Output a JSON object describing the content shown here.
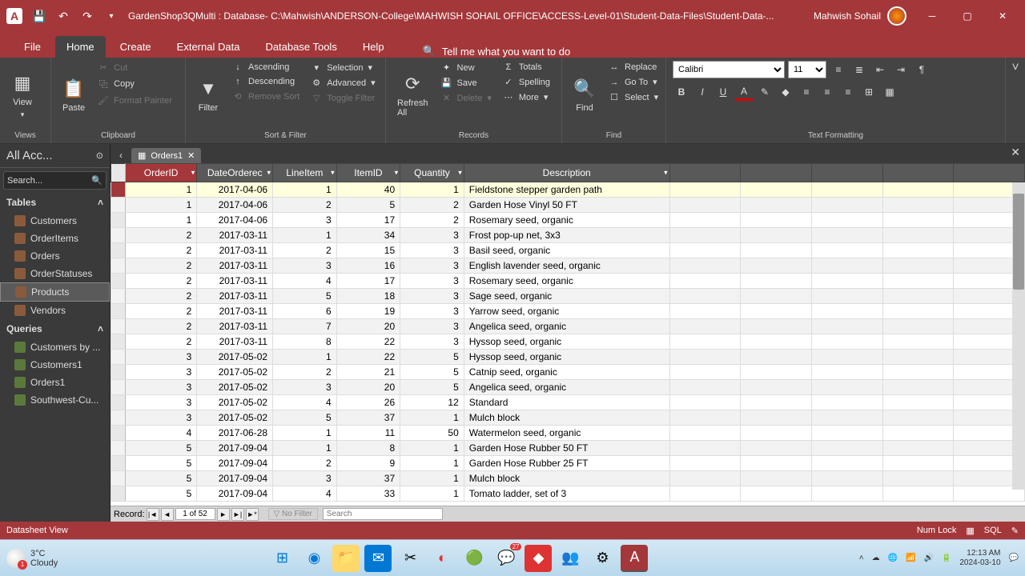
{
  "titlebar": {
    "app_letter": "A",
    "title": "GardenShop3QMulti : Database- C:\\Mahwish\\ANDERSON-College\\MAHWISH SOHAIL OFFICE\\ACCESS-Level-01\\Student-Data-Files\\Student-Data-...",
    "user": "Mahwish Sohail"
  },
  "tabs": {
    "file": "File",
    "home": "Home",
    "create": "Create",
    "external": "External Data",
    "dbtools": "Database Tools",
    "help": "Help",
    "tellme": "Tell me what you want to do"
  },
  "ribbon": {
    "views": {
      "label": "Views",
      "view": "View"
    },
    "clipboard": {
      "label": "Clipboard",
      "paste": "Paste",
      "cut": "Cut",
      "copy": "Copy",
      "format_painter": "Format Painter"
    },
    "sort": {
      "label": "Sort & Filter",
      "filter": "Filter",
      "asc": "Ascending",
      "desc": "Descending",
      "remove": "Remove Sort",
      "selection": "Selection",
      "advanced": "Advanced",
      "toggle": "Toggle Filter"
    },
    "records": {
      "label": "Records",
      "refresh": "Refresh\nAll",
      "new": "New",
      "save": "Save",
      "delete": "Delete",
      "totals": "Totals",
      "spelling": "Spelling",
      "more": "More"
    },
    "find": {
      "label": "Find",
      "find": "Find",
      "replace": "Replace",
      "goto": "Go To",
      "select": "Select"
    },
    "format": {
      "label": "Text Formatting",
      "font": "Calibri",
      "size": "11"
    }
  },
  "nav": {
    "header": "All Acc...",
    "search_placeholder": "Search...",
    "tables_label": "Tables",
    "tables": [
      "Customers",
      "OrderItems",
      "Orders",
      "OrderStatuses",
      "Products",
      "Vendors"
    ],
    "queries_label": "Queries",
    "queries": [
      "Customers by ...",
      "Customers1",
      "Orders1",
      "Southwest-Cu..."
    ]
  },
  "datasheet": {
    "tab_name": "Orders1",
    "columns": [
      "OrderID",
      "DateOrderec",
      "LineItem",
      "ItemID",
      "Quantity",
      "Description"
    ],
    "rows": [
      [
        "1",
        "2017-04-06",
        "1",
        "40",
        "1",
        "Fieldstone stepper garden path"
      ],
      [
        "1",
        "2017-04-06",
        "2",
        "5",
        "2",
        "Garden Hose Vinyl 50 FT"
      ],
      [
        "1",
        "2017-04-06",
        "3",
        "17",
        "2",
        "Rosemary seed, organic"
      ],
      [
        "2",
        "2017-03-11",
        "1",
        "34",
        "3",
        "Frost pop-up net, 3x3"
      ],
      [
        "2",
        "2017-03-11",
        "2",
        "15",
        "3",
        "Basil seed, organic"
      ],
      [
        "2",
        "2017-03-11",
        "3",
        "16",
        "3",
        "English lavender seed, organic"
      ],
      [
        "2",
        "2017-03-11",
        "4",
        "17",
        "3",
        "Rosemary seed, organic"
      ],
      [
        "2",
        "2017-03-11",
        "5",
        "18",
        "3",
        "Sage seed, organic"
      ],
      [
        "2",
        "2017-03-11",
        "6",
        "19",
        "3",
        "Yarrow seed, organic"
      ],
      [
        "2",
        "2017-03-11",
        "7",
        "20",
        "3",
        "Angelica seed, organic"
      ],
      [
        "2",
        "2017-03-11",
        "8",
        "22",
        "3",
        "Hyssop seed, organic"
      ],
      [
        "3",
        "2017-05-02",
        "1",
        "22",
        "5",
        "Hyssop seed, organic"
      ],
      [
        "3",
        "2017-05-02",
        "2",
        "21",
        "5",
        "Catnip seed, organic"
      ],
      [
        "3",
        "2017-05-02",
        "3",
        "20",
        "5",
        "Angelica seed, organic"
      ],
      [
        "3",
        "2017-05-02",
        "4",
        "26",
        "12",
        "Standard"
      ],
      [
        "3",
        "2017-05-02",
        "5",
        "37",
        "1",
        "Mulch block"
      ],
      [
        "4",
        "2017-06-28",
        "1",
        "11",
        "50",
        "Watermelon seed, organic"
      ],
      [
        "5",
        "2017-09-04",
        "1",
        "8",
        "1",
        "Garden Hose Rubber 50 FT"
      ],
      [
        "5",
        "2017-09-04",
        "2",
        "9",
        "1",
        "Garden Hose Rubber 25 FT"
      ],
      [
        "5",
        "2017-09-04",
        "3",
        "37",
        "1",
        "Mulch block"
      ],
      [
        "5",
        "2017-09-04",
        "4",
        "33",
        "1",
        "Tomato ladder, set of 3"
      ]
    ],
    "record_label": "Record:",
    "record_pos": "1 of 52",
    "filter_label": "No Filter",
    "search_label": "Search"
  },
  "statusbar": {
    "left": "Datasheet View",
    "numlock": "Num Lock",
    "sql": "SQL"
  },
  "taskbar": {
    "temp": "3°C",
    "weather": "Cloudy",
    "weather_badge": "1",
    "whatsapp_badge": "27",
    "time": "12:13 AM",
    "date": "2024-03-10"
  },
  "colors": {
    "accent": "#a4373a",
    "ribbon_bg": "#444",
    "nav_bg": "#3a3a3a"
  }
}
